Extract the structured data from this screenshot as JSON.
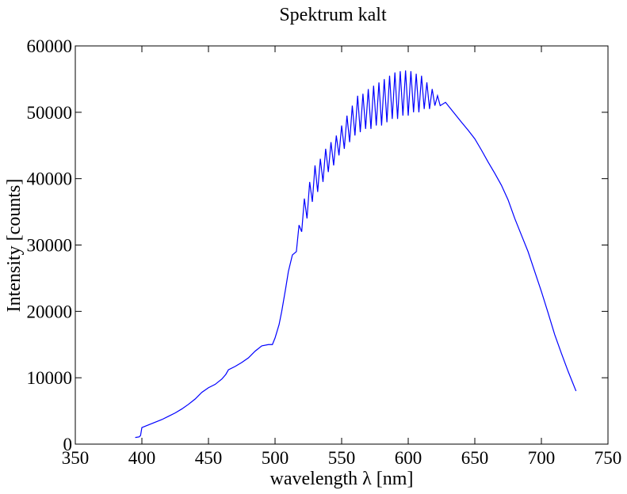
{
  "chart_data": {
    "type": "line",
    "title": "Spektrum kalt",
    "x_label": "wavelength λ [nm]",
    "y_label": "Intensity [counts]",
    "color": "#0000ff",
    "x": [
      395,
      398,
      399,
      400,
      405,
      410,
      415,
      420,
      425,
      430,
      435,
      440,
      445,
      450,
      455,
      460,
      463,
      465,
      470,
      475,
      480,
      485,
      490,
      495,
      498,
      500,
      503,
      505,
      508,
      510,
      513,
      516,
      518,
      520,
      522,
      524,
      526,
      528,
      530,
      532,
      534,
      536,
      538,
      540,
      542,
      544,
      546,
      548,
      550,
      552,
      554,
      556,
      558,
      560,
      562,
      564,
      566,
      568,
      570,
      572,
      574,
      576,
      578,
      580,
      582,
      584,
      586,
      588,
      590,
      592,
      594,
      596,
      598,
      600,
      602,
      604,
      606,
      608,
      610,
      612,
      614,
      616,
      618,
      620,
      622,
      624,
      628,
      632,
      636,
      640,
      645,
      650,
      655,
      660,
      665,
      670,
      675,
      680,
      685,
      690,
      695,
      700,
      705,
      710,
      715,
      720,
      723,
      726
    ],
    "values": [
      1000,
      1100,
      1300,
      2500,
      2900,
      3300,
      3700,
      4200,
      4700,
      5300,
      6000,
      6800,
      7800,
      8500,
      9000,
      9800,
      10500,
      11200,
      11700,
      12300,
      13000,
      14000,
      14800,
      15000,
      15000,
      16000,
      18000,
      20000,
      23500,
      26000,
      28500,
      29000,
      33000,
      32000,
      37000,
      34000,
      39500,
      36500,
      42000,
      38000,
      43000,
      39500,
      44500,
      41000,
      45500,
      42000,
      46500,
      43500,
      48000,
      44500,
      49500,
      45500,
      51000,
      46500,
      52500,
      47000,
      52800,
      47500,
      53500,
      47500,
      54000,
      48000,
      54500,
      48000,
      55000,
      48500,
      55500,
      49000,
      56000,
      49000,
      56200,
      49500,
      56300,
      49500,
      56200,
      50000,
      55800,
      50000,
      55500,
      50500,
      54500,
      50500,
      53500,
      51000,
      52500,
      51000,
      51500,
      50500,
      49500,
      48500,
      47300,
      46000,
      44300,
      42500,
      40800,
      39000,
      36800,
      34000,
      31500,
      29000,
      26000,
      23000,
      19800,
      16500,
      13700,
      11000,
      9500,
      8000
    ],
    "xlim": [
      350,
      750
    ],
    "ylim": [
      0,
      60000
    ],
    "xticks": [
      350,
      400,
      450,
      500,
      550,
      600,
      650,
      700,
      750
    ],
    "yticks": [
      0,
      10000,
      20000,
      30000,
      40000,
      50000,
      60000
    ]
  }
}
